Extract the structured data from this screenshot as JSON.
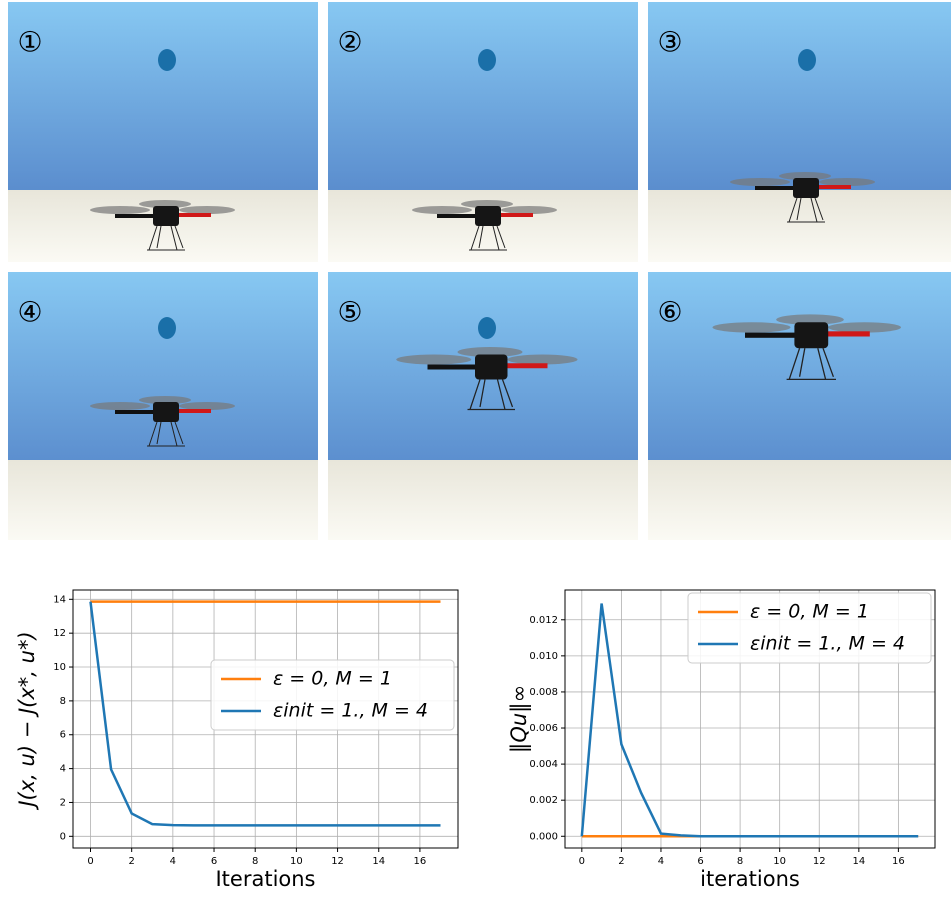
{
  "panels": {
    "labels": [
      "①",
      "②",
      "③",
      "④",
      "⑤",
      "⑥"
    ]
  },
  "chart_data": [
    {
      "type": "line",
      "xlabel": "Iterations",
      "ylabel": "J(x, u) − J(x*, u*)",
      "x": [
        0,
        1,
        2,
        3,
        4,
        5,
        6,
        7,
        8,
        9,
        10,
        11,
        12,
        13,
        14,
        15,
        16,
        17
      ],
      "series": [
        {
          "name": "ε = 0, M = 1",
          "color": "#ff7f0e",
          "values": [
            13.86,
            13.86,
            13.86,
            13.86,
            13.86,
            13.86,
            13.86,
            13.86,
            13.86,
            13.86,
            13.86,
            13.86,
            13.86,
            13.86,
            13.86,
            13.86,
            13.86,
            13.86
          ]
        },
        {
          "name": "εinit = 1., M = 4",
          "color": "#1f77b4",
          "values": [
            13.86,
            3.95,
            1.35,
            0.72,
            0.66,
            0.65,
            0.65,
            0.65,
            0.65,
            0.65,
            0.65,
            0.65,
            0.65,
            0.65,
            0.65,
            0.65,
            0.65,
            0.65
          ]
        }
      ],
      "xlim": [
        -0.85,
        17.85
      ],
      "ylim": [
        -0.69,
        14.55
      ],
      "xticks": [
        0,
        2,
        4,
        6,
        8,
        10,
        12,
        14,
        16
      ],
      "yticks": [
        0,
        2,
        4,
        6,
        8,
        10,
        12,
        14
      ],
      "grid": true,
      "legend": "right"
    },
    {
      "type": "line",
      "xlabel": "iterations",
      "ylabel": "‖Qu‖∞",
      "x": [
        0,
        1,
        2,
        3,
        4,
        5,
        6,
        7,
        8,
        9,
        10,
        11,
        12,
        13,
        14,
        15,
        16,
        17
      ],
      "series": [
        {
          "name": "ε = 0, M = 1",
          "color": "#ff7f0e",
          "values": [
            0,
            0,
            0,
            0,
            0,
            0,
            0,
            0,
            0,
            0,
            0,
            0,
            0,
            0,
            0,
            0,
            0,
            0
          ]
        },
        {
          "name": "εinit = 1., M = 4",
          "color": "#1f77b4",
          "values": [
            0,
            0.0129,
            0.0051,
            0.0024,
            0.00015,
            5e-05,
            0,
            0,
            0,
            0,
            0,
            0,
            0,
            0,
            0,
            0,
            0,
            0
          ]
        }
      ],
      "xlim": [
        -0.85,
        17.85
      ],
      "ylim": [
        -0.00065,
        0.01365
      ],
      "xticks": [
        0,
        2,
        4,
        6,
        8,
        10,
        12,
        14,
        16
      ],
      "yticks": [
        {
          "value": 0,
          "label": "0.000"
        },
        {
          "value": 0.002,
          "label": "0.002"
        },
        {
          "value": 0.004,
          "label": "0.004"
        },
        {
          "value": 0.006,
          "label": "0.006"
        },
        {
          "value": 0.008,
          "label": "0.008"
        },
        {
          "value": 0.01,
          "label": "0.010"
        },
        {
          "value": 0.012,
          "label": "0.012"
        }
      ],
      "grid": true,
      "legend": "upper right"
    }
  ]
}
